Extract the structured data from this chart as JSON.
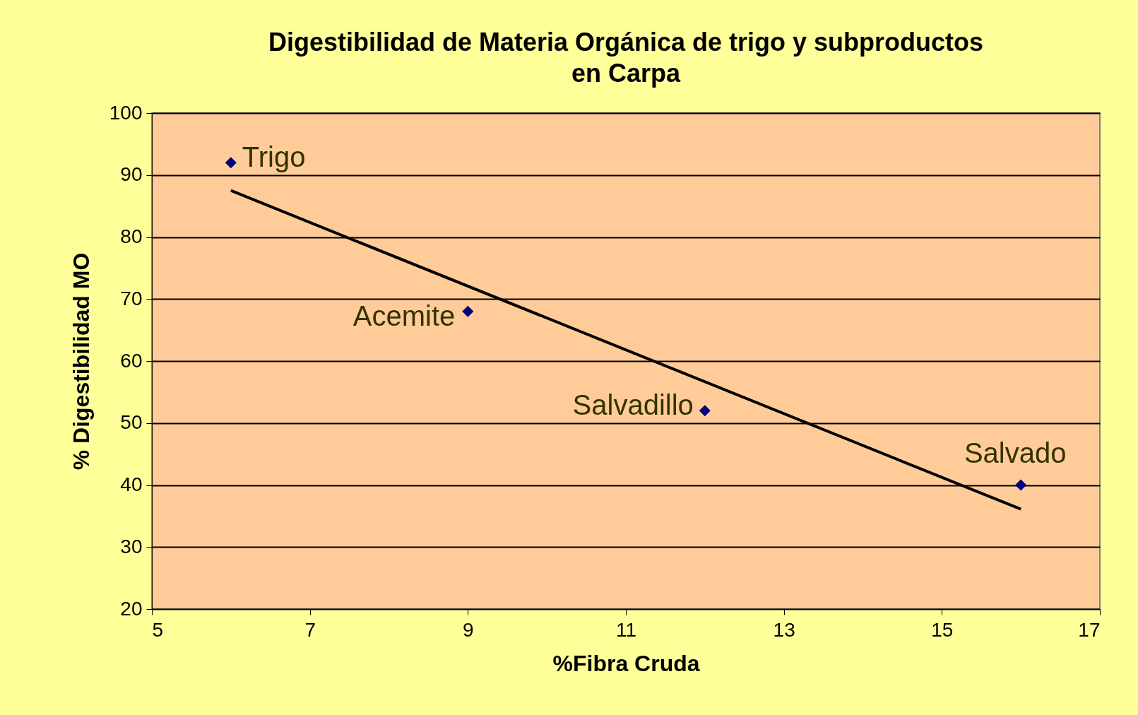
{
  "chart_data": {
    "type": "scatter",
    "title": "Digestibilidad de Materia Orgánica de trigo y subproductos\nen Carpa",
    "xlabel": "%Fibra Cruda",
    "ylabel": "% Digestibilidad MO",
    "series": [
      {
        "type": "scatter",
        "color": "#000080",
        "marker": "diamond",
        "x": [
          6,
          9,
          12,
          16
        ],
        "values": [
          92,
          68,
          52,
          40
        ]
      },
      {
        "type": "line",
        "color": "#000000",
        "marker": "none",
        "x": [
          6,
          16
        ],
        "values": [
          87.5,
          36.1
        ]
      }
    ],
    "annotations": [
      {
        "text": "Trigo",
        "x": 6,
        "y": 92
      },
      {
        "text": "Acemite",
        "x": 9,
        "y": 68
      },
      {
        "text": "Salvadillo",
        "x": 12,
        "y": 52
      },
      {
        "text": "Salvado",
        "x": 16,
        "y": 40
      }
    ],
    "xlim": [
      5,
      17
    ],
    "xticks": [
      5,
      7,
      9,
      11,
      13,
      15,
      17
    ],
    "ylim": [
      20,
      100
    ],
    "yticks": [
      20,
      30,
      40,
      50,
      60,
      70,
      80,
      90,
      100
    ],
    "grid": "y"
  }
}
